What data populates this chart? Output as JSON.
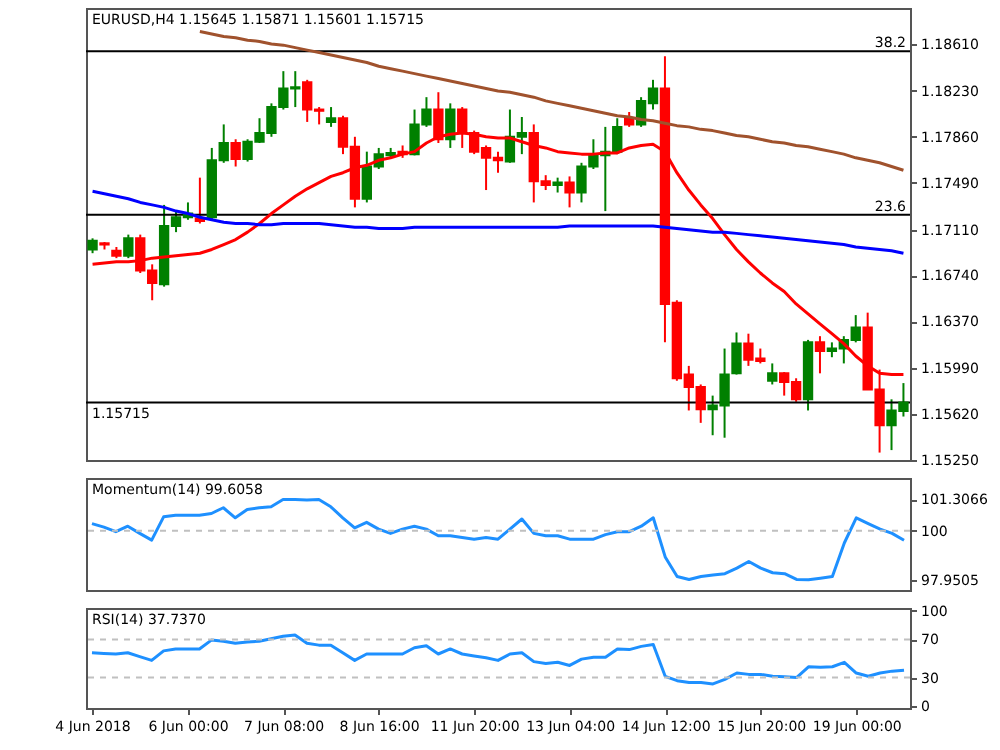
{
  "chart_data": [
    {
      "type": "candlestick",
      "title": "EURUSD,H4 1.15645 1.15871 1.15601 1.15715",
      "categories": [
        null,
        null,
        null,
        null,
        null,
        null,
        null,
        null,
        null,
        null,
        null,
        null,
        null,
        null,
        null,
        null,
        null,
        null,
        null,
        null,
        null,
        null,
        null,
        null,
        null,
        null,
        null,
        null,
        null,
        null,
        null,
        null,
        null,
        null,
        null,
        null,
        null,
        null,
        null,
        null,
        null,
        null,
        null,
        null,
        null,
        null,
        null,
        null,
        null,
        null,
        null,
        null,
        null,
        null,
        null,
        null,
        null,
        null,
        null,
        null,
        null,
        null,
        null,
        null,
        null,
        null,
        null,
        null,
        null
      ],
      "ohlc": [
        [
          1.1695,
          1.1704,
          1.1692,
          1.1702
        ],
        [
          1.17,
          1.1701,
          1.1695,
          1.1699
        ],
        [
          1.1694,
          1.1697,
          1.1688,
          1.169
        ],
        [
          1.169,
          1.1707,
          1.1688,
          1.1704
        ],
        [
          1.1704,
          1.1707,
          1.1676,
          1.1678
        ],
        [
          1.1678,
          1.1683,
          1.1654,
          1.1668
        ],
        [
          1.1667,
          1.1731,
          1.1665,
          1.1714
        ],
        [
          1.1714,
          1.1726,
          1.1709,
          1.1721
        ],
        [
          1.1721,
          1.1733,
          1.1719,
          1.1724
        ],
        [
          1.172,
          1.1753,
          1.1716,
          1.1718
        ],
        [
          1.1721,
          1.1777,
          1.1719,
          1.1767
        ],
        [
          1.1767,
          1.1796,
          1.1765,
          1.1781
        ],
        [
          1.1781,
          1.1784,
          1.1762,
          1.1768
        ],
        [
          1.1768,
          1.1784,
          1.1766,
          1.1782
        ],
        [
          1.1782,
          1.1801,
          1.1781,
          1.1789
        ],
        [
          1.1789,
          1.1813,
          1.1786,
          1.181
        ],
        [
          1.181,
          1.1839,
          1.1808,
          1.1825
        ],
        [
          1.1825,
          1.1839,
          1.181,
          1.1826
        ],
        [
          1.183,
          1.1832,
          1.1798,
          1.1808
        ],
        [
          1.1808,
          1.181,
          1.1796,
          1.1807
        ],
        [
          1.1798,
          1.181,
          1.1794,
          1.1801
        ],
        [
          1.1801,
          1.1803,
          1.1772,
          1.1778
        ],
        [
          1.1778,
          1.1786,
          1.1729,
          1.1736
        ],
        [
          1.1736,
          1.1774,
          1.1733,
          1.1762
        ],
        [
          1.1762,
          1.1777,
          1.176,
          1.1772
        ],
        [
          1.1771,
          1.1777,
          1.1769,
          1.1773
        ],
        [
          1.1774,
          1.1779,
          1.1769,
          1.1772
        ],
        [
          1.1772,
          1.1808,
          1.1771,
          1.1796
        ],
        [
          1.1796,
          1.1818,
          1.1794,
          1.1808
        ],
        [
          1.1808,
          1.1822,
          1.1781,
          1.1784
        ],
        [
          1.1784,
          1.1813,
          1.1777,
          1.1808
        ],
        [
          1.1808,
          1.181,
          1.1777,
          1.1789
        ],
        [
          1.1789,
          1.1791,
          1.1772,
          1.1774
        ],
        [
          1.1777,
          1.1779,
          1.1743,
          1.1769
        ],
        [
          1.1769,
          1.1774,
          1.1757,
          1.1767
        ],
        [
          1.1766,
          1.1808,
          1.1765,
          1.1786
        ],
        [
          1.1786,
          1.1802,
          1.1772,
          1.1789
        ],
        [
          1.1789,
          1.1796,
          1.1733,
          1.175
        ],
        [
          1.175,
          1.1755,
          1.1743,
          1.1747
        ],
        [
          1.1747,
          1.1753,
          1.1741,
          1.1749
        ],
        [
          1.1749,
          1.1754,
          1.1729,
          1.1741
        ],
        [
          1.1741,
          1.1765,
          1.1733,
          1.1762
        ],
        [
          1.1762,
          1.1784,
          1.176,
          1.1772
        ],
        [
          1.1771,
          1.1794,
          1.1726,
          1.1774
        ],
        [
          1.1774,
          1.1801,
          1.1772,
          1.1794
        ],
        [
          1.1801,
          1.1806,
          1.1794,
          1.1796
        ],
        [
          1.1796,
          1.1818,
          1.1794,
          1.1815
        ],
        [
          1.1813,
          1.1832,
          1.1808,
          1.1825
        ],
        [
          1.1825,
          1.1851,
          1.162,
          1.1651
        ],
        [
          1.1652,
          1.1654,
          1.1589,
          1.1591
        ],
        [
          1.1594,
          1.1601,
          1.1565,
          1.1584
        ],
        [
          1.1584,
          1.1586,
          1.1555,
          1.1566
        ],
        [
          1.1566,
          1.1577,
          1.1545,
          1.1569
        ],
        [
          1.1569,
          1.1615,
          1.1543,
          1.1594
        ],
        [
          1.1595,
          1.1628,
          1.1594,
          1.1619
        ],
        [
          1.1619,
          1.1627,
          1.1601,
          1.1606
        ],
        [
          1.1607,
          1.1615,
          1.1603,
          1.1605
        ],
        [
          1.1589,
          1.1603,
          1.1586,
          1.1595
        ],
        [
          1.1595,
          1.1596,
          1.1577,
          1.1588
        ],
        [
          1.1588,
          1.1591,
          1.1572,
          1.1574
        ],
        [
          1.1574,
          1.1622,
          1.1565,
          1.162
        ],
        [
          1.162,
          1.1625,
          1.1595,
          1.1613
        ],
        [
          1.1613,
          1.162,
          1.1608,
          1.1615
        ],
        [
          1.1615,
          1.1625,
          1.1603,
          1.1622
        ],
        [
          1.1622,
          1.1642,
          1.162,
          1.1632
        ],
        [
          1.1632,
          1.1644,
          1.1582,
          1.1582
        ],
        [
          1.1582,
          1.1598,
          1.1531,
          1.1553
        ],
        [
          1.1553,
          1.1574,
          1.1533,
          1.1565
        ],
        [
          1.15645,
          1.15871,
          1.15601,
          1.15715
        ]
      ],
      "colors": [
        "#008000",
        "#ff0000",
        "#ff0000",
        "#008000",
        "#ff0000",
        "#ff0000",
        "#008000",
        "#008000",
        "#008000",
        "#ff0000",
        "#008000",
        "#008000",
        "#ff0000",
        "#008000",
        "#008000",
        "#008000",
        "#008000",
        "#008000",
        "#ff0000",
        "#ff0000",
        "#008000",
        "#ff0000",
        "#ff0000",
        "#008000",
        "#008000",
        "#008000",
        "#ff0000",
        "#008000",
        "#008000",
        "#ff0000",
        "#008000",
        "#ff0000",
        "#ff0000",
        "#ff0000",
        "#ff0000",
        "#008000",
        "#008000",
        "#ff0000",
        "#ff0000",
        "#008000",
        "#ff0000",
        "#008000",
        "#008000",
        "#008000",
        "#008000",
        "#ff0000",
        "#008000",
        "#008000",
        "#ff0000",
        "#ff0000",
        "#ff0000",
        "#ff0000",
        "#008000",
        "#008000",
        "#008000",
        "#ff0000",
        "#ff0000",
        "#008000",
        "#ff0000",
        "#ff0000",
        "#008000",
        "#ff0000",
        "#008000",
        "#008000",
        "#008000",
        "#ff0000",
        "#ff0000",
        "#008000",
        "#008000"
      ],
      "series": [
        {
          "type": "line",
          "color": "#ff0000",
          "values": [
            1.1683,
            1.1684,
            1.1685,
            1.1685,
            1.1686,
            1.1688,
            1.1689,
            1.169,
            1.1691,
            1.1692,
            1.1695,
            1.1699,
            1.1703,
            1.1709,
            1.1716,
            1.1724,
            1.1731,
            1.1738,
            1.1744,
            1.1749,
            1.1754,
            1.1757,
            1.1761,
            1.1763,
            1.1767,
            1.1769,
            1.1772,
            1.1774,
            1.1781,
            1.1786,
            1.1788,
            1.1789,
            1.1788,
            1.1786,
            1.1785,
            1.1785,
            1.1782,
            1.1779,
            1.1777,
            1.1774,
            1.1773,
            1.1772,
            1.1772,
            1.1773,
            1.1773,
            1.1777,
            1.1779,
            1.178,
            1.1774,
            1.1757,
            1.1743,
            1.1731,
            1.172,
            1.1707,
            1.1695,
            1.1685,
            1.1676,
            1.1668,
            1.1661,
            1.1651,
            1.1643,
            1.1635,
            1.1627,
            1.1619,
            1.1609,
            1.1601,
            1.1595,
            1.1594,
            1.1594
          ]
        },
        {
          "type": "line",
          "color": "#a0522d",
          "values": [
            null,
            null,
            null,
            null,
            null,
            null,
            null,
            null,
            null,
            1.1871,
            1.1869,
            1.1867,
            1.1866,
            1.1864,
            1.1863,
            1.1861,
            1.186,
            1.1858,
            1.1856,
            1.1854,
            1.1852,
            1.185,
            1.1848,
            1.1846,
            1.1843,
            1.1841,
            1.1839,
            1.1837,
            1.1835,
            1.1833,
            1.1831,
            1.1829,
            1.1827,
            1.1825,
            1.1823,
            1.1822,
            1.182,
            1.1818,
            1.1815,
            1.1813,
            1.1811,
            1.1809,
            1.1807,
            1.1805,
            1.1803,
            1.1802,
            1.18,
            1.1799,
            1.1797,
            1.1795,
            1.1794,
            1.1792,
            1.1791,
            1.1789,
            1.1787,
            1.1786,
            1.1784,
            1.1782,
            1.1781,
            1.1779,
            1.1778,
            1.1776,
            1.1774,
            1.1772,
            1.1769,
            1.1767,
            1.1765,
            1.1762,
            1.1759
          ]
        },
        {
          "type": "line",
          "color": "#0000ff",
          "values": [
            1.1742,
            1.174,
            1.1738,
            1.1736,
            1.1733,
            1.1731,
            1.1729,
            1.1726,
            1.1724,
            1.1721,
            1.1719,
            1.1717,
            1.1716,
            1.1716,
            1.1715,
            1.1715,
            1.1716,
            1.1716,
            1.1716,
            1.1716,
            1.1715,
            1.1714,
            1.1713,
            1.1713,
            1.1712,
            1.1712,
            1.1712,
            1.1713,
            1.1713,
            1.1713,
            1.1713,
            1.1713,
            1.1713,
            1.1713,
            1.1713,
            1.1713,
            1.1713,
            1.1713,
            1.1713,
            1.1713,
            1.1714,
            1.1714,
            1.1714,
            1.1714,
            1.1714,
            1.1714,
            1.1714,
            1.1714,
            1.1713,
            1.1712,
            1.1711,
            1.171,
            1.1709,
            1.1709,
            1.1708,
            1.1707,
            1.1706,
            1.1705,
            1.1704,
            1.1703,
            1.1702,
            1.1701,
            1.17,
            1.1699,
            1.1697,
            1.1696,
            1.1695,
            1.1694,
            1.1692
          ]
        }
      ],
      "ylim": [
        1.1525,
        1.189
      ],
      "yticks": [
        {
          "value": 1.1861,
          "label": "1.18610"
        },
        {
          "value": 1.1823,
          "label": "1.18230"
        },
        {
          "value": 1.1786,
          "label": "1.17860"
        },
        {
          "value": 1.1749,
          "label": "1.17490"
        },
        {
          "value": 1.1711,
          "label": "1.17110"
        },
        {
          "value": 1.1674,
          "label": "1.16740"
        },
        {
          "value": 1.1637,
          "label": "1.16370"
        },
        {
          "value": 1.1599,
          "label": "1.15990"
        },
        {
          "value": 1.1562,
          "label": "1.15620"
        },
        {
          "value": 1.1525,
          "label": "1.15250"
        }
      ],
      "ref_lines": [
        {
          "axis": "y",
          "value": 1.1855,
          "color": "#000000"
        },
        {
          "axis": "y",
          "value": 1.1723,
          "color": "#000000"
        },
        {
          "axis": "y",
          "value": 1.15715,
          "label": "1.15715",
          "color": "#000000"
        }
      ],
      "annotations": [
        {
          "text": "38.2",
          "y": 1.1855
        },
        {
          "text": "23.6",
          "y": 1.1723
        }
      ],
      "tick_labels": "y",
      "grid": false
    },
    {
      "type": "line",
      "title": "Momentum(14) 99.6058",
      "categories": [
        null,
        null,
        null,
        null,
        null,
        null,
        null,
        null,
        null,
        null,
        null,
        null,
        null,
        null,
        null,
        null,
        null,
        null,
        null,
        null,
        null,
        null,
        null,
        null,
        null,
        null,
        null,
        null,
        null,
        null,
        null,
        null,
        null,
        null,
        null,
        null,
        null,
        null,
        null,
        null,
        null,
        null,
        null,
        null,
        null,
        null,
        null,
        null,
        null,
        null,
        null,
        null,
        null,
        null,
        null,
        null,
        null,
        null,
        null,
        null,
        null,
        null,
        null,
        null,
        null,
        null,
        null,
        null,
        null
      ],
      "series": [
        {
          "color": "#1e90ff",
          "values": [
            100.3,
            100.15,
            99.96,
            100.19,
            99.89,
            99.61,
            100.58,
            100.65,
            100.65,
            100.65,
            100.72,
            100.96,
            100.54,
            100.89,
            100.96,
            101.0,
            101.3,
            101.3,
            101.28,
            101.3,
            101.0,
            100.54,
            100.12,
            100.35,
            100.07,
            99.89,
            100.07,
            100.19,
            100.07,
            99.79,
            99.79,
            99.72,
            99.65,
            99.72,
            99.65,
            100.07,
            100.49,
            99.89,
            99.79,
            99.79,
            99.65,
            99.65,
            99.65,
            99.84,
            99.96,
            99.96,
            100.19,
            100.54,
            98.91,
            98.09,
            97.97,
            98.09,
            98.16,
            98.21,
            98.44,
            98.72,
            98.44,
            98.25,
            98.21,
            97.97,
            97.96,
            98.02,
            98.09,
            99.49,
            100.54,
            100.3,
            100.07,
            99.89,
            99.6058
          ]
        }
      ],
      "ylim": [
        97.53,
        102.2
      ],
      "yticks": [
        101.3066,
        100,
        97.9505
      ],
      "ref_lines": [
        {
          "axis": "y",
          "value": 100,
          "color": "#c0c0c0",
          "line_style": "dashed"
        }
      ],
      "tick_labels": "y",
      "grid": false
    },
    {
      "type": "line",
      "title": "RSI(14) 37.7370",
      "categories": [
        "4 Jun 2018",
        null,
        null,
        null,
        null,
        null,
        null,
        null,
        "6 Jun 00:00",
        null,
        null,
        null,
        null,
        null,
        null,
        null,
        "7 Jun 08:00",
        null,
        null,
        null,
        null,
        null,
        null,
        null,
        "8 Jun 16:00",
        null,
        null,
        null,
        null,
        null,
        null,
        null,
        "11 Jun 20:00",
        null,
        null,
        null,
        null,
        null,
        null,
        null,
        "13 Jun 04:00",
        null,
        null,
        null,
        null,
        null,
        null,
        null,
        "14 Jun 12:00",
        null,
        null,
        null,
        null,
        null,
        null,
        null,
        "15 Jun 20:00",
        null,
        null,
        null,
        null,
        null,
        null,
        null,
        "19 Jun 00:00",
        null,
        null,
        null,
        null
      ],
      "series": [
        {
          "color": "#1e90ff",
          "values": [
            56.0,
            55.3,
            54.7,
            56.0,
            52.0,
            48.0,
            58.0,
            60.0,
            60.0,
            60.0,
            69.3,
            68.0,
            66.0,
            67.3,
            68.0,
            70.7,
            73.3,
            74.7,
            66.0,
            64.0,
            64.0,
            56.0,
            48.0,
            54.7,
            54.7,
            54.7,
            54.7,
            61.3,
            63.3,
            54.7,
            60.0,
            54.7,
            52.7,
            50.7,
            48.0,
            54.7,
            56.0,
            46.7,
            44.7,
            46.0,
            42.7,
            49.3,
            51.3,
            51.3,
            60.0,
            59.3,
            62.7,
            64.7,
            31.3,
            26.7,
            24.7,
            24.7,
            23.3,
            28.0,
            34.7,
            33.3,
            33.3,
            31.3,
            30.7,
            30.0,
            41.3,
            40.7,
            41.3,
            46.0,
            34.7,
            31.3,
            34.7,
            36.7,
            37.737
          ]
        }
      ],
      "ylim": [
        -2,
        103
      ],
      "yticks": [
        100,
        70,
        30,
        0
      ],
      "ref_lines": [
        {
          "axis": "y",
          "value": 70,
          "color": "#c0c0c0",
          "line_style": "dashed"
        },
        {
          "axis": "y",
          "value": 30,
          "color": "#c0c0c0",
          "line_style": "dashed"
        }
      ],
      "grid": false
    }
  ]
}
